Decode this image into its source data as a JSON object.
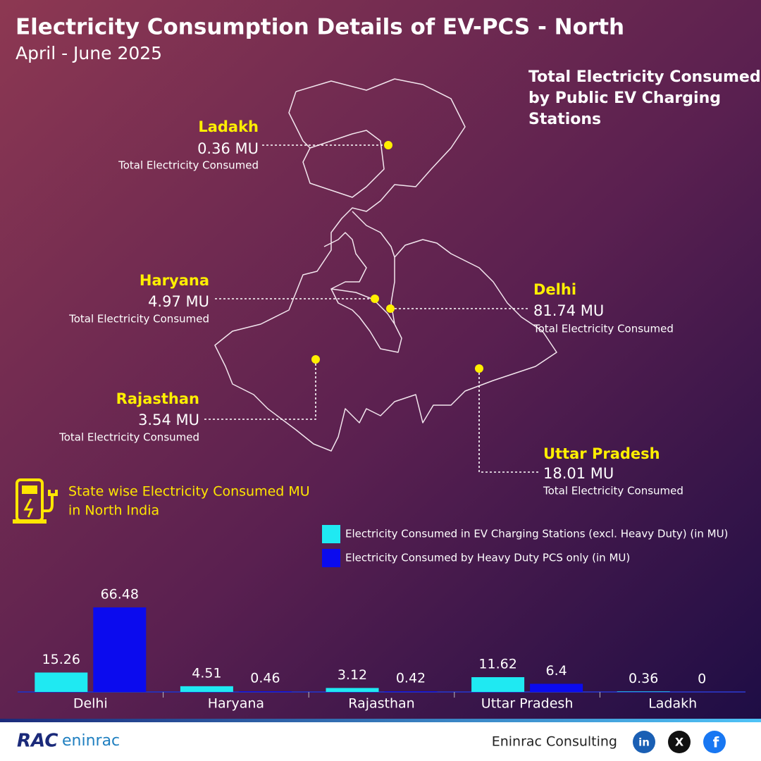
{
  "header": {
    "title": "Electricity Consumption Details of EV-PCS - North",
    "subtitle": "April - June 2025"
  },
  "map": {
    "heading": [
      "Total Electricity Consumed",
      "by Public EV Charging",
      "Stations"
    ],
    "callouts": [
      {
        "state": "Ladakh",
        "value": "0.36 MU",
        "caption": "Total Electricity Consumed"
      },
      {
        "state": "Haryana",
        "value": "4.97 MU",
        "caption": "Total Electricity Consumed"
      },
      {
        "state": "Delhi",
        "value": "81.74 MU",
        "caption": "Total Electricity Consumed"
      },
      {
        "state": "Rajasthan",
        "value": "3.54 MU",
        "caption": "Total Electricity Consumed"
      },
      {
        "state": "Uttar Pradesh",
        "value": "18.01 MU",
        "caption": "Total Electricity Consumed"
      }
    ]
  },
  "chart_data": {
    "type": "bar",
    "title": [
      "State wise Electricity Consumed MU",
      "in North India"
    ],
    "categories": [
      "Delhi",
      "Haryana",
      "Rajasthan",
      "Uttar Pradesh",
      "Ladakh"
    ],
    "series": [
      {
        "name": "Electricity Consumed in EV Charging Stations (excl. Heavy Duty) (in MU)",
        "color": "#1fe9f2",
        "values": [
          15.26,
          4.51,
          3.12,
          11.62,
          0.36
        ]
      },
      {
        "name": "Electricity Consumed by Heavy Duty PCS only (in MU)",
        "color": "#0b0bee",
        "values": [
          66.48,
          0.46,
          0.42,
          6.4,
          0
        ]
      }
    ]
  },
  "footer": {
    "logo_left": "RAC",
    "logo_right": "eninrac",
    "company": "Eninrac Consulting",
    "social": [
      "in",
      "X",
      "f"
    ]
  }
}
